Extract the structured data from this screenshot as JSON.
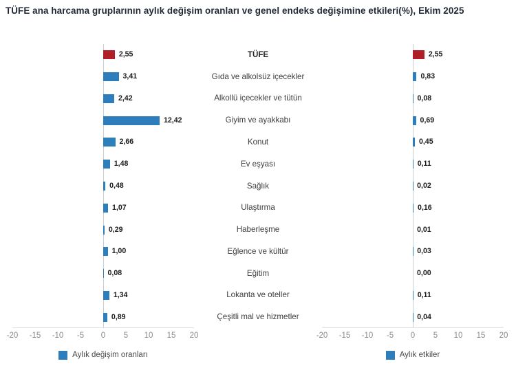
{
  "title": "TÜFE ana harcama gruplarının aylık değişim oranları ve genel endeks değişimine etkileri(%), Ekim 2025",
  "colors": {
    "bar_blue": "#2e7ebc",
    "bar_red": "#b01e28",
    "zero_line": "#c9ccd1",
    "baseline": "#dcdfe3",
    "tick_text": "#8a8a8a",
    "category_text": "#3d3d3d",
    "value_text": "#1a1a1a",
    "title_text": "#1f2733"
  },
  "categories": [
    "TÜFE",
    "Gıda ve alkolsüz içecekler",
    "Alkollü içecekler ve tütün",
    "Giyim ve ayakkabı",
    "Konut",
    "Ev eşyası",
    "Sağlık",
    "Ulaştırma",
    "Haberleşme",
    "Eğlence ve kültür",
    "Eğitim",
    "Lokanta ve oteller",
    "Çeşitli mal ve hizmetler"
  ],
  "chart_data": [
    {
      "type": "bar",
      "orientation": "horizontal",
      "legend": "Aylık değişim oranları",
      "legend_position": "bottom",
      "grid": false,
      "xlim": [
        -20,
        20
      ],
      "xticks": [
        -20,
        -15,
        -10,
        -5,
        0,
        5,
        10,
        15,
        20
      ],
      "highlight_index": 0,
      "values": [
        2.55,
        3.41,
        2.42,
        12.42,
        2.66,
        1.48,
        0.48,
        1.07,
        0.29,
        1.0,
        0.08,
        1.34,
        0.89
      ],
      "value_labels": [
        "2,55",
        "3,41",
        "2,42",
        "12,42",
        "2,66",
        "1,48",
        "0,48",
        "1,07",
        "0,29",
        "1,00",
        "0,08",
        "1,34",
        "0,89"
      ]
    },
    {
      "type": "bar",
      "orientation": "horizontal",
      "legend": "Aylık etkiler",
      "legend_position": "bottom",
      "grid": false,
      "xlim": [
        -20,
        20
      ],
      "xticks": [
        -20,
        -15,
        -10,
        -5,
        0,
        5,
        10,
        15,
        20
      ],
      "highlight_index": 0,
      "values": [
        2.55,
        0.83,
        0.08,
        0.69,
        0.45,
        0.11,
        0.02,
        0.16,
        0.01,
        0.03,
        0.0,
        0.11,
        0.04
      ],
      "value_labels": [
        "2,55",
        "0,83",
        "0,08",
        "0,69",
        "0,45",
        "0,11",
        "0,02",
        "0,16",
        "0,01",
        "0,03",
        "0,00",
        "0,11",
        "0,04"
      ]
    }
  ]
}
